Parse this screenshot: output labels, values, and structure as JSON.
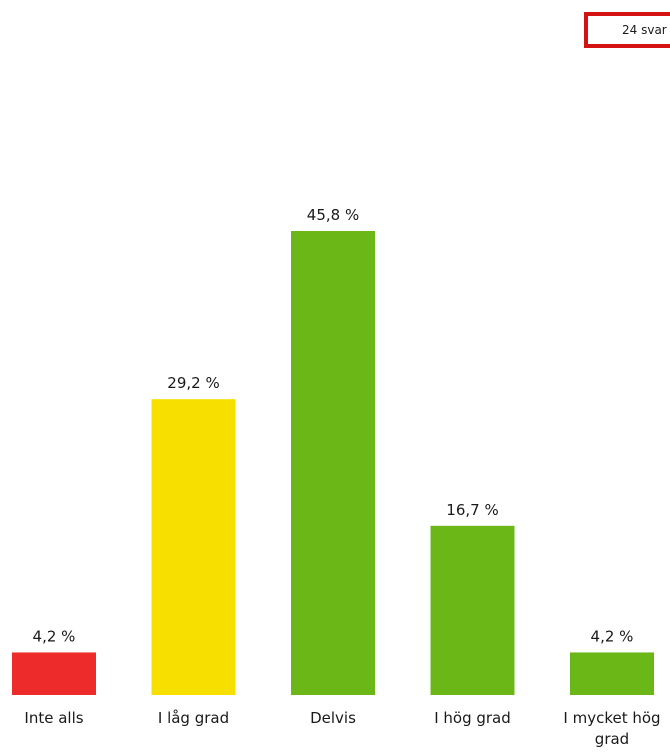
{
  "badge": {
    "text": "24 svar"
  },
  "chart_data": {
    "type": "bar",
    "categories": [
      "Inte alls",
      "I låg grad",
      "Delvis",
      "I hög grad",
      "I mycket hög grad"
    ],
    "values": [
      4.2,
      29.2,
      45.8,
      16.7,
      4.2
    ],
    "value_labels": [
      "4,2 %",
      "29,2 %",
      "45,8 %",
      "16,7 %",
      "4,2 %"
    ],
    "colors": [
      "#ee2b2b",
      "#f7e000",
      "#6cb718",
      "#6cb718",
      "#6cb718"
    ],
    "ylim": [
      0,
      45.8
    ],
    "grid": false,
    "legend": "none"
  }
}
